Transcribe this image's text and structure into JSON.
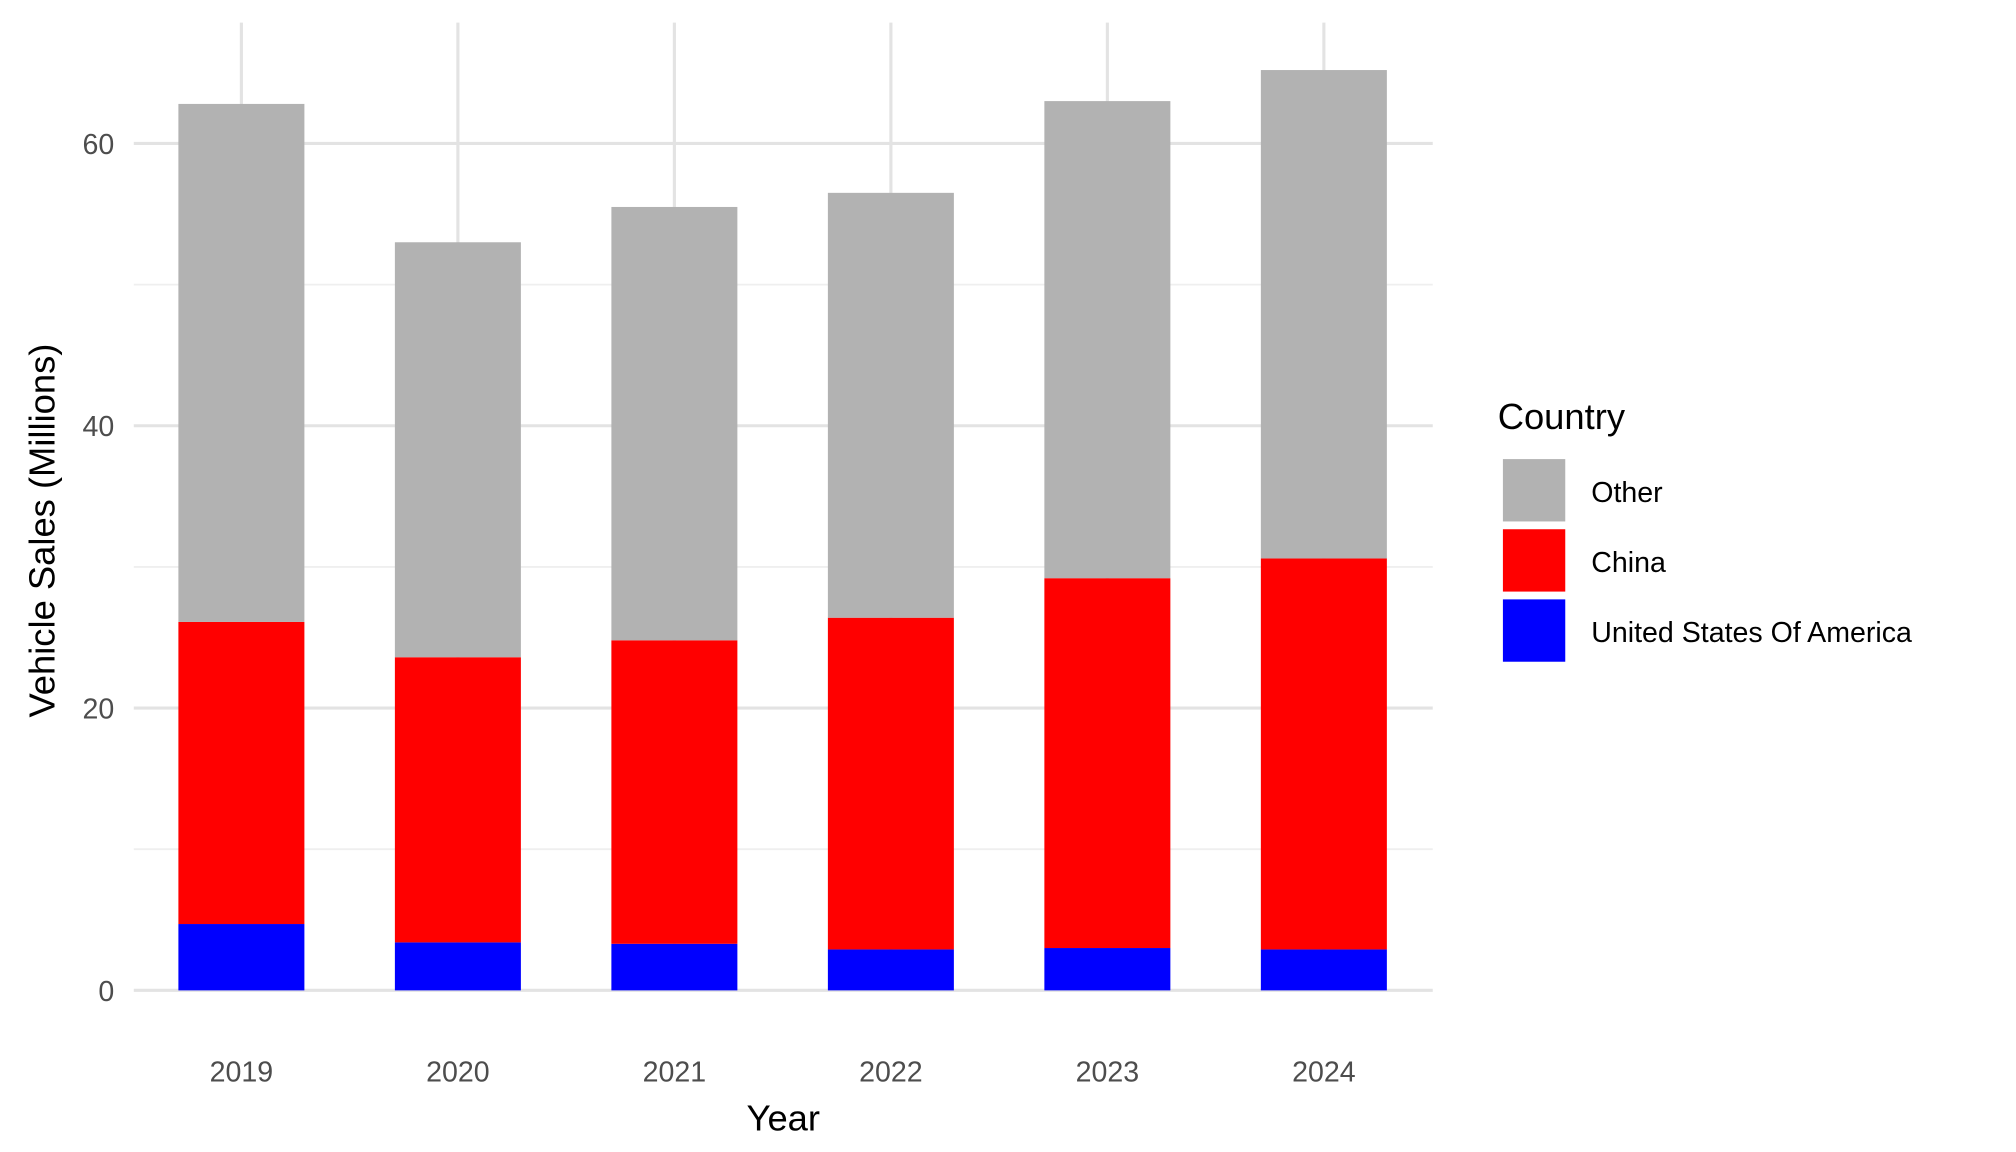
{
  "chart_data": {
    "type": "bar",
    "stacked": true,
    "title": "",
    "xlabel": "Year",
    "ylabel": "Vehicle Sales (Millions)",
    "categories": [
      "2019",
      "2020",
      "2021",
      "2022",
      "2023",
      "2024"
    ],
    "ylim": [
      0,
      68
    ],
    "yticks": [
      0,
      20,
      40,
      60
    ],
    "grid": true,
    "legend": {
      "title": "Country",
      "placement": "right"
    },
    "series": [
      {
        "name": "United States Of America",
        "color": "#0000ff",
        "values": [
          4.7,
          3.4,
          3.3,
          2.9,
          3.0,
          2.9
        ]
      },
      {
        "name": "China",
        "color": "#ff0000",
        "values": [
          21.4,
          20.2,
          21.5,
          23.5,
          26.2,
          27.7
        ]
      },
      {
        "name": "Other",
        "color": "#b2b2b2",
        "values": [
          36.7,
          29.4,
          30.7,
          30.1,
          33.8,
          34.6
        ]
      }
    ],
    "legend_order": [
      "Other",
      "China",
      "United States Of America"
    ]
  }
}
